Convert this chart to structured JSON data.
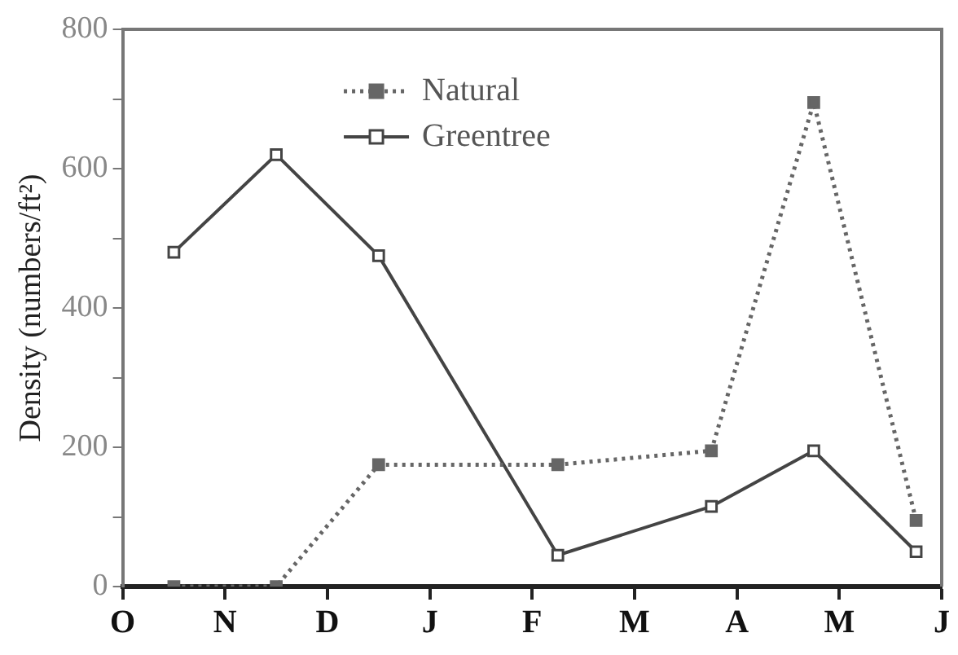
{
  "chart_data": {
    "type": "line",
    "ylabel": "Density (numbers/ft²)",
    "categories": [
      "O",
      null,
      null,
      null,
      "N",
      null,
      null,
      null,
      "D",
      null,
      null,
      null,
      "J",
      null,
      null,
      null,
      "F",
      null,
      null,
      null,
      "M",
      null,
      null,
      null,
      "A",
      null,
      null,
      null,
      "M",
      null,
      null,
      null,
      "J"
    ],
    "ylim": [
      0,
      800
    ],
    "yticks": [
      0,
      {
        "value": 100,
        "label": null
      },
      200,
      {
        "value": 300,
        "label": null
      },
      400,
      {
        "value": 500,
        "label": null
      },
      600,
      {
        "value": 700,
        "label": null
      },
      800
    ],
    "legend": "top",
    "grid": false,
    "series": [
      {
        "name": "Natural",
        "color": "#666666",
        "marker": "square",
        "line_style": "dotted",
        "values": [
          null,
          null,
          0,
          null,
          null,
          null,
          0,
          null,
          null,
          null,
          175,
          null,
          null,
          null,
          null,
          null,
          null,
          175,
          null,
          null,
          null,
          null,
          null,
          195,
          null,
          null,
          null,
          695,
          null,
          null,
          null,
          95,
          null
        ]
      },
      {
        "name": "Greentree",
        "color": "#444444",
        "marker": "square",
        "line_style": "solid",
        "values": [
          null,
          null,
          480,
          null,
          null,
          null,
          620,
          null,
          null,
          null,
          475,
          null,
          null,
          null,
          null,
          null,
          null,
          45,
          null,
          null,
          null,
          null,
          null,
          115,
          null,
          null,
          null,
          195,
          null,
          null,
          null,
          50,
          null
        ]
      }
    ]
  }
}
